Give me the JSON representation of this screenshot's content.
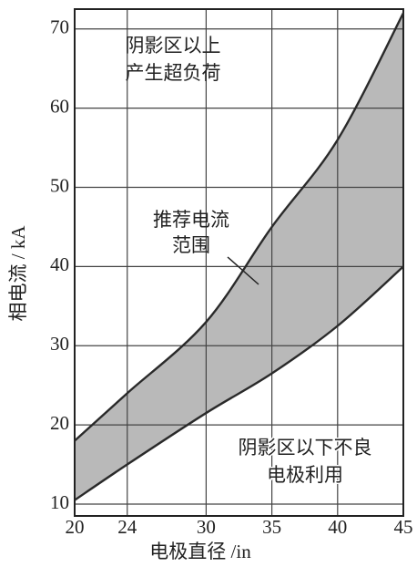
{
  "chart_data": {
    "type": "range_area",
    "x_label": "电极直径 /in",
    "y_label": "相电流 / kA",
    "x": [
      20,
      24,
      30,
      35,
      40,
      45
    ],
    "series": [
      {
        "name": "upper",
        "color": "#2a2a2a",
        "values": [
          18,
          24,
          33,
          45,
          56,
          72
        ]
      },
      {
        "name": "lower",
        "color": "#2a2a2a",
        "values": [
          10.5,
          15,
          21.5,
          26.5,
          32.5,
          40
        ]
      }
    ],
    "fill_color": "#b9b9b9",
    "xlim": [
      20,
      45
    ],
    "xticks": [
      20,
      24,
      30,
      35,
      40,
      45
    ],
    "ylim": [
      8.5,
      72.5
    ],
    "yticks": [
      10,
      20,
      30,
      40,
      50,
      60,
      70
    ],
    "grid": true,
    "annotations": [
      "阴影区以上",
      "产生超负荷",
      "推荐电流",
      "范围",
      "阴影区以下不良",
      "电极利用"
    ]
  }
}
